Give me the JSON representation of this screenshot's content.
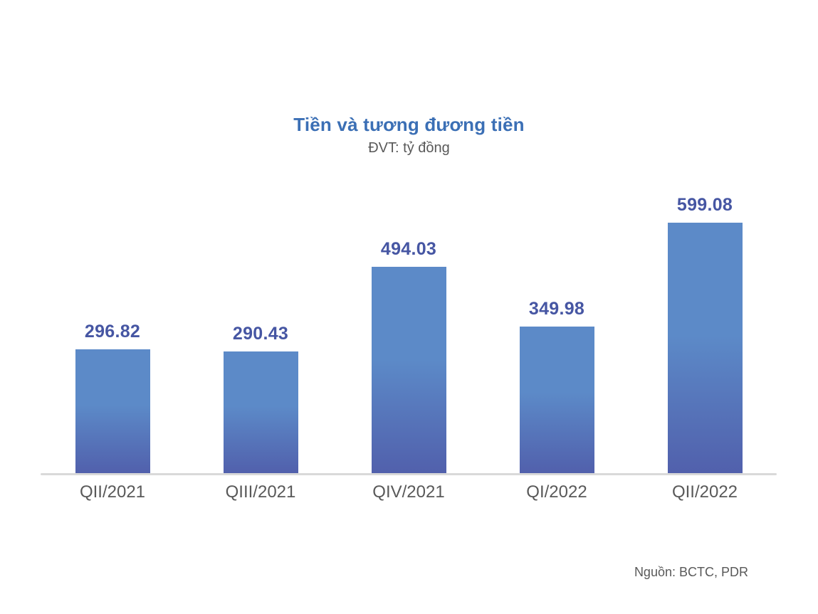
{
  "chart_data": {
    "type": "bar",
    "title": "Tiền và tương đương tiền",
    "subtitle": "ĐVT: tỷ đồng",
    "categories": [
      "QII/2021",
      "QIII/2021",
      "QIV/2021",
      "QI/2022",
      "QII/2022"
    ],
    "values": [
      296.82,
      290.43,
      494.03,
      349.98,
      599.08
    ],
    "value_labels": [
      "296.82",
      "290.43",
      "494.03",
      "349.98",
      "599.08"
    ],
    "xlabel": "",
    "ylabel": "tỷ đồng",
    "ylim": [
      0,
      650
    ],
    "grid": false,
    "legend": "none",
    "data_labels_position": "above-bars",
    "colors": {
      "bar_gradient_top": "#5c8ac8",
      "bar_gradient_bottom": "#5160ac",
      "value_label": "#4656a3",
      "title": "#3b6fb5",
      "subtitle_text": "#595959",
      "category_text": "#595959",
      "axis_line": "#d9d9d9",
      "background": "#ffffff"
    }
  },
  "footer": {
    "source": "Nguồn: BCTC, PDR"
  }
}
